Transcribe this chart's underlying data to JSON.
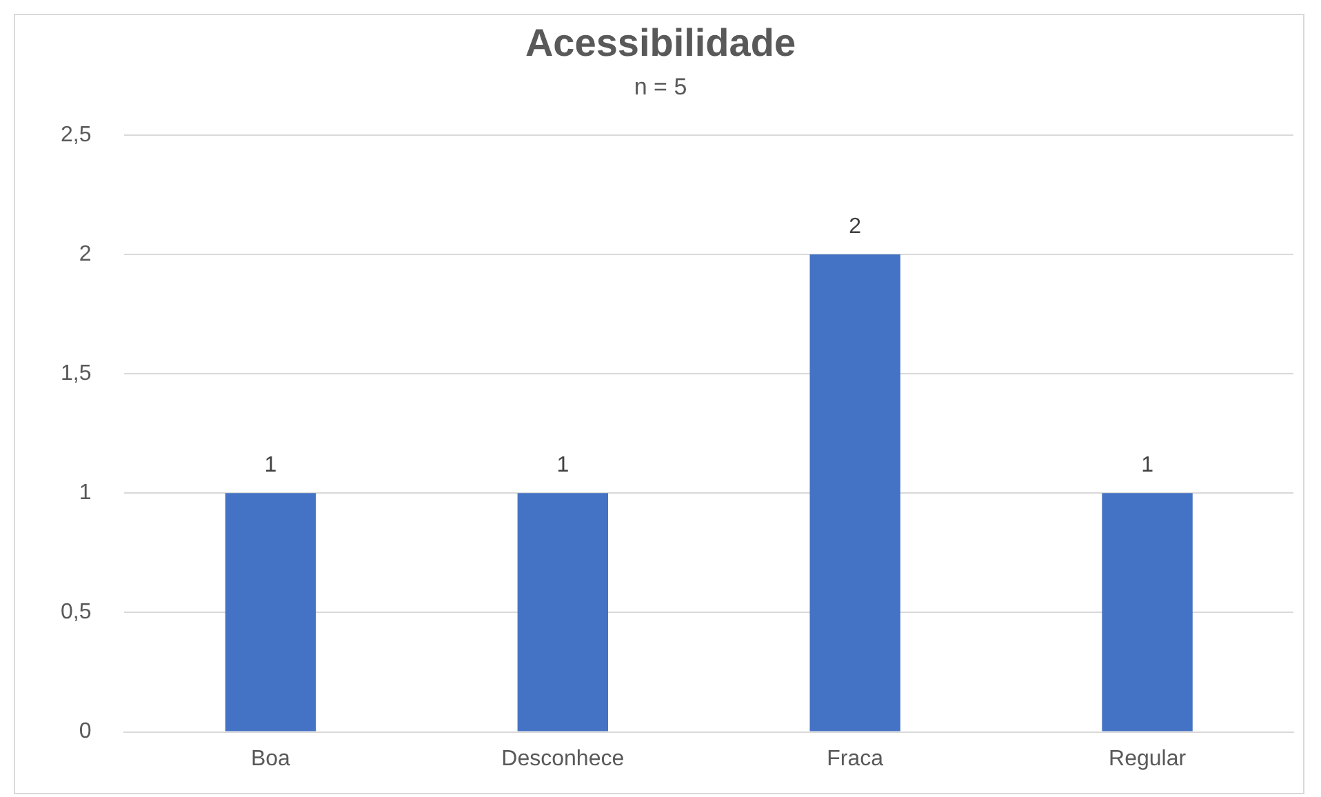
{
  "chart_data": {
    "type": "bar",
    "title": "Acessibilidade",
    "subtitle": "n = 5",
    "categories": [
      "Boa",
      "Desconhece",
      "Fraca",
      "Regular"
    ],
    "values": [
      1,
      1,
      2,
      1
    ],
    "color": "#4472c4",
    "ylim": [
      0,
      2.5
    ],
    "yticks": [
      0,
      {
        "value": 0.5,
        "label": "0,5"
      },
      1,
      {
        "value": 1.5,
        "label": "1,5"
      },
      2,
      {
        "value": 2.5,
        "label": "2,5"
      }
    ],
    "grid": "y",
    "legend": false,
    "data_labels": true
  }
}
